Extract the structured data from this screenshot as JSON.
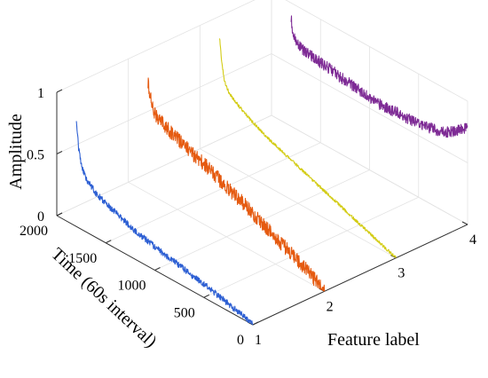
{
  "chart_data": {
    "type": "line",
    "projection": "3d",
    "xlabel": "Feature label",
    "ylabel": "Time (60s interval)",
    "zlabel": "Amplitude",
    "x_ticks": [
      "1",
      "2",
      "3",
      "4"
    ],
    "y_ticks": [
      "0",
      "500",
      "1000",
      "1500",
      "2000"
    ],
    "z_ticks": [
      "0",
      "0.5",
      "1"
    ],
    "xlim": [
      1,
      4
    ],
    "ylim": [
      0,
      2000
    ],
    "zlim": [
      0,
      1
    ],
    "grid": true,
    "colors": [
      "#2d5fd3",
      "#e55a10",
      "#d3cc16",
      "#7e2b95"
    ],
    "series": [
      {
        "x": 1,
        "time": [
          0,
          100,
          200,
          300,
          400,
          500,
          600,
          700,
          800,
          900,
          1000,
          1100,
          1200,
          1300,
          1400,
          1500,
          1600,
          1700,
          1750,
          1780,
          1800
        ],
        "amplitude": [
          0.0,
          0.03,
          0.05,
          0.07,
          0.09,
          0.11,
          0.12,
          0.14,
          0.16,
          0.17,
          0.19,
          0.21,
          0.23,
          0.26,
          0.29,
          0.32,
          0.36,
          0.43,
          0.52,
          0.66,
          0.87
        ],
        "noise": 0.025
      },
      {
        "x": 2,
        "time": [
          0,
          100,
          200,
          300,
          400,
          500,
          600,
          700,
          800,
          900,
          1000,
          1100,
          1200,
          1300,
          1400,
          1500,
          1600,
          1700,
          1750,
          1780,
          1800
        ],
        "amplitude": [
          0.0,
          0.05,
          0.1,
          0.14,
          0.18,
          0.22,
          0.26,
          0.3,
          0.34,
          0.37,
          0.41,
          0.44,
          0.48,
          0.51,
          0.54,
          0.58,
          0.61,
          0.65,
          0.7,
          0.8,
          0.9
        ],
        "noise": 0.06
      },
      {
        "x": 3,
        "time": [
          0,
          100,
          200,
          300,
          400,
          500,
          600,
          700,
          800,
          900,
          1000,
          1100,
          1200,
          1300,
          1400,
          1500,
          1600,
          1700,
          1750,
          1780,
          1800
        ],
        "amplitude": [
          0.0,
          0.03,
          0.06,
          0.09,
          0.12,
          0.15,
          0.18,
          0.21,
          0.24,
          0.27,
          0.3,
          0.33,
          0.36,
          0.39,
          0.43,
          0.47,
          0.52,
          0.58,
          0.66,
          0.82,
          0.99
        ],
        "noise": 0.012
      },
      {
        "x": 4,
        "time": [
          0,
          100,
          200,
          300,
          400,
          500,
          600,
          700,
          800,
          900,
          1000,
          1100,
          1200,
          1300,
          1400,
          1500,
          1600,
          1700,
          1750,
          1780,
          1800
        ],
        "amplitude": [
          0.78,
          0.72,
          0.66,
          0.63,
          0.61,
          0.6,
          0.59,
          0.59,
          0.58,
          0.58,
          0.59,
          0.6,
          0.61,
          0.62,
          0.64,
          0.65,
          0.66,
          0.68,
          0.7,
          0.76,
          0.88
        ],
        "noise": 0.045
      }
    ]
  }
}
